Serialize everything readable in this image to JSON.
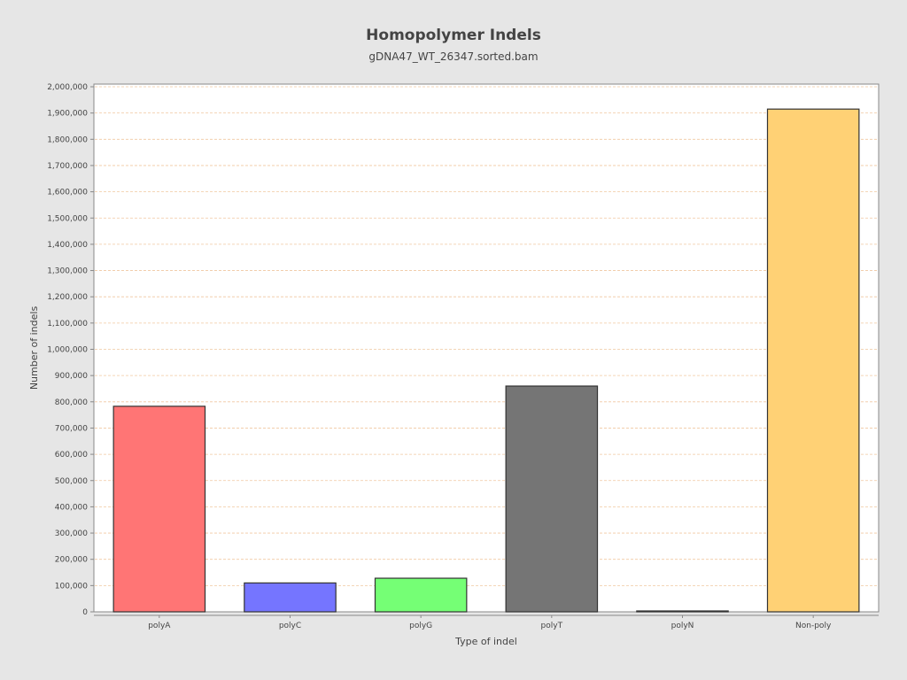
{
  "chart_data": {
    "type": "bar",
    "title": "Homopolymer Indels",
    "subtitle": "gDNA47_WT_26347.sorted.bam",
    "xlabel": "Type of indel",
    "ylabel": "Number of indels",
    "categories": [
      "polyA",
      "polyC",
      "polyG",
      "polyT",
      "polyN",
      "Non-poly"
    ],
    "values": [
      783000,
      110000,
      128000,
      860000,
      1000,
      1915000
    ],
    "colors": [
      "#ff7575",
      "#7575ff",
      "#75ff75",
      "#757575",
      "#7a7a7a",
      "#ffd175"
    ],
    "ylim": [
      0,
      2000000
    ],
    "ytick_step": 100000,
    "ytick_labels": [
      "0",
      "100,000",
      "200,000",
      "300,000",
      "400,000",
      "500,000",
      "600,000",
      "700,000",
      "800,000",
      "900,000",
      "1,000,000",
      "1,100,000",
      "1,200,000",
      "1,300,000",
      "1,400,000",
      "1,500,000",
      "1,600,000",
      "1,700,000",
      "1,800,000",
      "1,900,000",
      "2,000,000"
    ],
    "grid": true,
    "legend": "none",
    "colors_misc": {
      "background": "#e6e6e6",
      "plot_background": "#ffffff",
      "gridline": "#f0c8a0",
      "bar_outline": "#333333"
    }
  }
}
